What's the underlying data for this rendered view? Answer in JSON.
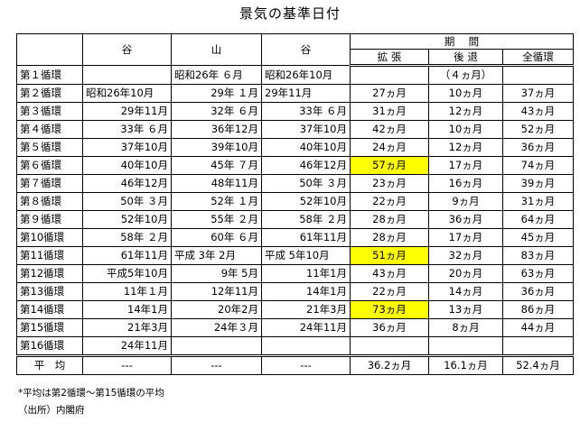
{
  "title": "景気の基準日付",
  "header": {
    "trough": "谷",
    "peak": "山",
    "trough2": "谷",
    "period": "期　 間",
    "expansion": "拡 張",
    "contraction": "後 退",
    "full_cycle": "全循環"
  },
  "rows": [
    {
      "cycle": "第１循環",
      "trough": "",
      "peak": "昭和26年 ６月",
      "trough2": "昭和26年10月",
      "expansion": "",
      "contraction": "（４ヵ月）",
      "full": "",
      "highlight": false
    },
    {
      "cycle": "第２循環",
      "trough": "昭和26年10月",
      "peak": "29年 １月",
      "trough2": "29年11月",
      "expansion": "27ヵ月",
      "contraction": "10ヵ月",
      "full": "37ヵ月",
      "highlight": false
    },
    {
      "cycle": "第３循環",
      "trough": "29年11月",
      "peak": "32年 ６月",
      "trough2": "33年 ６月",
      "expansion": "31ヵ月",
      "contraction": "12ヵ月",
      "full": "43ヵ月",
      "highlight": false
    },
    {
      "cycle": "第４循環",
      "trough": "33年 ６月",
      "peak": "36年12月",
      "trough2": "37年10月",
      "expansion": "42ヵ月",
      "contraction": "10ヵ月",
      "full": "52ヵ月",
      "highlight": false
    },
    {
      "cycle": "第５循環",
      "trough": "37年10月",
      "peak": "39年10月",
      "trough2": "40年10月",
      "expansion": "24ヵ月",
      "contraction": "12ヵ月",
      "full": "36ヵ月",
      "highlight": false
    },
    {
      "cycle": "第６循環",
      "trough": "40年10月",
      "peak": "45年 ７月",
      "trough2": "46年12月",
      "expansion": "57ヵ月",
      "contraction": "17ヵ月",
      "full": "74ヵ月",
      "highlight": true
    },
    {
      "cycle": "第７循環",
      "trough": "46年12月",
      "peak": "48年11月",
      "trough2": "50年 ３月",
      "expansion": "23ヵ月",
      "contraction": "16ヵ月",
      "full": "39ヵ月",
      "highlight": false
    },
    {
      "cycle": "第８循環",
      "trough": "50年 ３月",
      "peak": "52年 １月",
      "trough2": "52年10月",
      "expansion": "22ヵ月",
      "contraction": "9ヵ月",
      "full": "31ヵ月",
      "highlight": false
    },
    {
      "cycle": "第９循環",
      "trough": "52年10月",
      "peak": "55年 ２月",
      "trough2": "58年 ２月",
      "expansion": "28ヵ月",
      "contraction": "36ヵ月",
      "full": "64ヵ月",
      "highlight": false
    },
    {
      "cycle": "第10循環",
      "trough": "58年 ２月",
      "peak": "60年 ６月",
      "trough2": "61年11月",
      "expansion": "28ヵ月",
      "contraction": "17ヵ月",
      "full": "45ヵ月",
      "highlight": false
    },
    {
      "cycle": "第11循環",
      "trough": "61年11月",
      "peak": "平成 3年 2月",
      "trough2": "平成 5年10月",
      "expansion": "51ヵ月",
      "contraction": "32ヵ月",
      "full": "83ヵ月",
      "highlight": true
    },
    {
      "cycle": "第12循環",
      "trough": "平成5年10月",
      "peak": "9年 5月",
      "trough2": "11年1月",
      "expansion": "43ヵ月",
      "contraction": "20ヵ月",
      "full": "63ヵ月",
      "highlight": false
    },
    {
      "cycle": "第13循環",
      "trough": "11年１月",
      "peak": "12年11月",
      "trough2": "14年1月",
      "expansion": "22ヵ月",
      "contraction": "14ヵ月",
      "full": "36ヵ月",
      "highlight": false
    },
    {
      "cycle": "第14循環",
      "trough": "14年1月",
      "peak": "20年2月",
      "trough2": "21年3月",
      "expansion": "73ヵ月",
      "contraction": "13ヵ月",
      "full": "86ヵ月",
      "highlight": true
    },
    {
      "cycle": "第15循環",
      "trough": "21年3月",
      "peak": "24年３月",
      "trough2": "24年11月",
      "expansion": "36ヵ月",
      "contraction": "8ヵ月",
      "full": "44ヵ月",
      "highlight": false
    },
    {
      "cycle": "第16循環",
      "trough": "24年11月",
      "peak": "",
      "trough2": "",
      "expansion": "",
      "contraction": "",
      "full": "",
      "highlight": false
    }
  ],
  "average": {
    "label": "平　均",
    "trough": "---",
    "peak": "---",
    "trough2": "---",
    "expansion": "36.2ヵ月",
    "contraction": "16.1ヵ月",
    "full": "52.4ヵ月"
  },
  "notes": {
    "note1": "*平均は第2循環～第15循環の平均",
    "source": "（出所）内閣府"
  }
}
